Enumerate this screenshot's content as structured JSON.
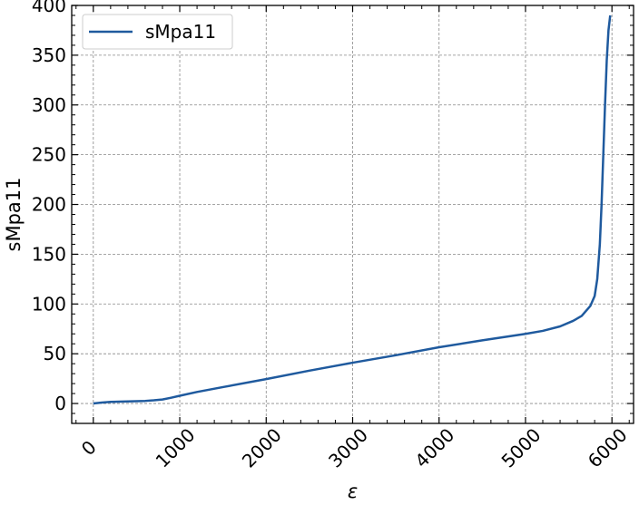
{
  "chart_data": {
    "type": "line",
    "xlabel": "ε",
    "ylabel": "sMpa11",
    "xlim": [
      -250,
      6250
    ],
    "ylim": [
      -20,
      400
    ],
    "xticks": [
      0,
      1000,
      2000,
      3000,
      4000,
      5000,
      6000
    ],
    "xtick_labels": [
      "0",
      "1000",
      "2000",
      "3000",
      "4000",
      "5000",
      "6000"
    ],
    "yticks": [
      0,
      50,
      100,
      150,
      200,
      250,
      300,
      350,
      400
    ],
    "ytick_labels": [
      "0",
      "50",
      "100",
      "150",
      "200",
      "250",
      "300",
      "350",
      "400"
    ],
    "grid": true,
    "legend_position": "upper-left",
    "series": [
      {
        "name": "sMpa11",
        "color": "#1f5a9e",
        "x": [
          0,
          100,
          200,
          300,
          400,
          500,
          600,
          700,
          800,
          900,
          1000,
          1200,
          1500,
          2000,
          2500,
          3000,
          3500,
          4000,
          4500,
          5000,
          5200,
          5400,
          5550,
          5650,
          5750,
          5800,
          5830,
          5860,
          5880,
          5900,
          5920,
          5940,
          5960,
          5980
        ],
        "y": [
          0,
          1,
          1.6,
          1.9,
          2.1,
          2.3,
          2.6,
          3.2,
          4,
          5.8,
          7.8,
          11.6,
          16.5,
          24.5,
          33,
          41,
          48.5,
          56.5,
          63.5,
          70,
          73,
          77.5,
          83,
          88,
          98,
          108,
          125,
          160,
          200,
          250,
          300,
          345,
          375,
          390
        ]
      }
    ]
  }
}
